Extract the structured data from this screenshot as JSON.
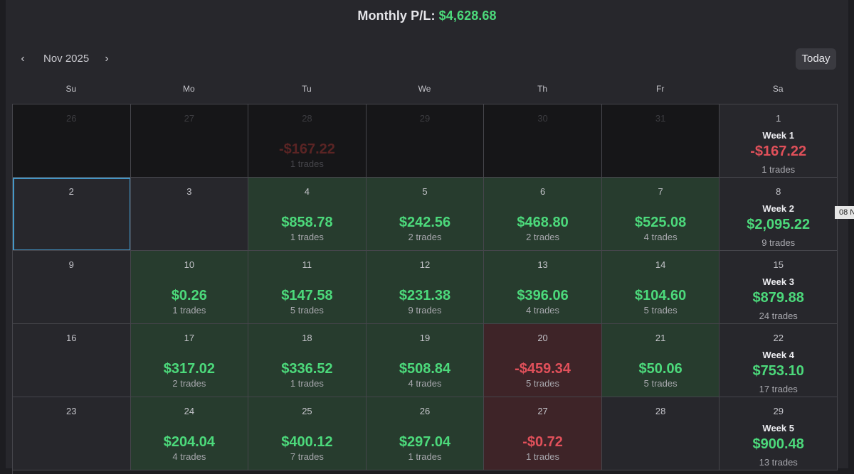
{
  "header": {
    "monthly_label": "Monthly P/L:",
    "monthly_value": "$4,628.68"
  },
  "nav": {
    "prev_icon": "‹",
    "next_icon": "›",
    "month": "Nov 2025",
    "today_label": "Today"
  },
  "weekdays": [
    "Su",
    "Mo",
    "Tu",
    "We",
    "Th",
    "Fr",
    "Sa"
  ],
  "side_tag": "08 N",
  "colors": {
    "positive": "#4cd97b",
    "negative": "#e0505a",
    "green_bg": "#273c2e",
    "red_bg": "#3e2428"
  },
  "weeks": [
    {
      "days": [
        {
          "day": "26",
          "kind": "outside"
        },
        {
          "day": "27",
          "kind": "outside"
        },
        {
          "day": "28",
          "kind": "outside",
          "amount": "-$167.22",
          "sign": "neg",
          "trades": "1 trades"
        },
        {
          "day": "29",
          "kind": "outside"
        },
        {
          "day": "30",
          "kind": "outside"
        },
        {
          "day": "31",
          "kind": "outside"
        }
      ],
      "summary": {
        "day": "1",
        "label": "Week 1",
        "amount": "-$167.22",
        "sign": "neg",
        "trades": "1 trades"
      }
    },
    {
      "days": [
        {
          "day": "2",
          "kind": "selected"
        },
        {
          "day": "3",
          "kind": "empty"
        },
        {
          "day": "4",
          "kind": "green",
          "amount": "$858.78",
          "sign": "pos",
          "trades": "1 trades"
        },
        {
          "day": "5",
          "kind": "green",
          "amount": "$242.56",
          "sign": "pos",
          "trades": "2 trades"
        },
        {
          "day": "6",
          "kind": "green",
          "amount": "$468.80",
          "sign": "pos",
          "trades": "2 trades"
        },
        {
          "day": "7",
          "kind": "green",
          "amount": "$525.08",
          "sign": "pos",
          "trades": "4 trades"
        }
      ],
      "summary": {
        "day": "8",
        "label": "Week 2",
        "amount": "$2,095.22",
        "sign": "pos",
        "trades": "9 trades"
      }
    },
    {
      "days": [
        {
          "day": "9",
          "kind": "empty"
        },
        {
          "day": "10",
          "kind": "green",
          "amount": "$0.26",
          "sign": "pos",
          "trades": "1 trades"
        },
        {
          "day": "11",
          "kind": "green",
          "amount": "$147.58",
          "sign": "pos",
          "trades": "5 trades"
        },
        {
          "day": "12",
          "kind": "green",
          "amount": "$231.38",
          "sign": "pos",
          "trades": "9 trades"
        },
        {
          "day": "13",
          "kind": "green",
          "amount": "$396.06",
          "sign": "pos",
          "trades": "4 trades"
        },
        {
          "day": "14",
          "kind": "green",
          "amount": "$104.60",
          "sign": "pos",
          "trades": "5 trades"
        }
      ],
      "summary": {
        "day": "15",
        "label": "Week 3",
        "amount": "$879.88",
        "sign": "pos",
        "trades": "24 trades"
      }
    },
    {
      "days": [
        {
          "day": "16",
          "kind": "empty"
        },
        {
          "day": "17",
          "kind": "green",
          "amount": "$317.02",
          "sign": "pos",
          "trades": "2 trades"
        },
        {
          "day": "18",
          "kind": "green",
          "amount": "$336.52",
          "sign": "pos",
          "trades": "1 trades"
        },
        {
          "day": "19",
          "kind": "green",
          "amount": "$508.84",
          "sign": "pos",
          "trades": "4 trades"
        },
        {
          "day": "20",
          "kind": "red",
          "amount": "-$459.34",
          "sign": "neg",
          "trades": "5 trades"
        },
        {
          "day": "21",
          "kind": "green",
          "amount": "$50.06",
          "sign": "pos",
          "trades": "5 trades"
        }
      ],
      "summary": {
        "day": "22",
        "label": "Week 4",
        "amount": "$753.10",
        "sign": "pos",
        "trades": "17 trades"
      }
    },
    {
      "days": [
        {
          "day": "23",
          "kind": "empty"
        },
        {
          "day": "24",
          "kind": "green",
          "amount": "$204.04",
          "sign": "pos",
          "trades": "4 trades"
        },
        {
          "day": "25",
          "kind": "green",
          "amount": "$400.12",
          "sign": "pos",
          "trades": "7 trades"
        },
        {
          "day": "26",
          "kind": "green",
          "amount": "$297.04",
          "sign": "pos",
          "trades": "1 trades"
        },
        {
          "day": "27",
          "kind": "red",
          "amount": "-$0.72",
          "sign": "neg",
          "trades": "1 trades"
        },
        {
          "day": "28",
          "kind": "empty"
        }
      ],
      "summary": {
        "day": "29",
        "label": "Week 5",
        "amount": "$900.48",
        "sign": "pos",
        "trades": "13 trades"
      }
    }
  ]
}
